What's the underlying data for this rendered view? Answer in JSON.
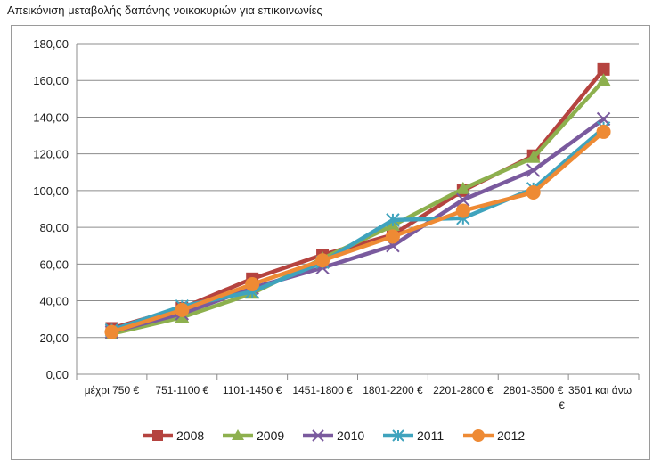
{
  "chart_data": {
    "type": "line",
    "title": "Απεικόνιση μεταβολής δαπάνης νοικοκυριών για επικοινωνίες",
    "xlabel": "",
    "ylabel": "",
    "ylim": [
      0,
      180
    ],
    "y_step": 20,
    "y_ticks": [
      "0,00",
      "20,00",
      "40,00",
      "60,00",
      "80,00",
      "100,00",
      "120,00",
      "140,00",
      "160,00",
      "180,00"
    ],
    "grid": true,
    "legend_position": "bottom",
    "categories": [
      "μέχρι 750 €",
      "751-1100 €",
      "1101-1450 €",
      "1451-1800 €",
      "1801-2200 €",
      "2201-2800 €",
      "2801-3500 €",
      "3501 και άνω €"
    ],
    "series": [
      {
        "name": "2008",
        "color": "#B5433F",
        "marker": "square",
        "values": [
          25,
          36,
          52,
          65,
          76,
          100,
          119,
          166
        ]
      },
      {
        "name": "2009",
        "color": "#8DB04E",
        "marker": "triangle",
        "values": [
          22,
          31,
          44,
          63,
          81,
          101,
          118,
          160
        ]
      },
      {
        "name": "2010",
        "color": "#7A5A9E",
        "marker": "x",
        "values": [
          23,
          33,
          47,
          58,
          70,
          95,
          111,
          139
        ]
      },
      {
        "name": "2011",
        "color": "#3FA3BD",
        "marker": "star",
        "values": [
          24,
          37,
          45,
          61,
          84,
          85,
          101,
          134
        ]
      },
      {
        "name": "2012",
        "color": "#EE8A34",
        "marker": "circle",
        "values": [
          23,
          35,
          49,
          62,
          75,
          89,
          99,
          132
        ]
      }
    ]
  }
}
